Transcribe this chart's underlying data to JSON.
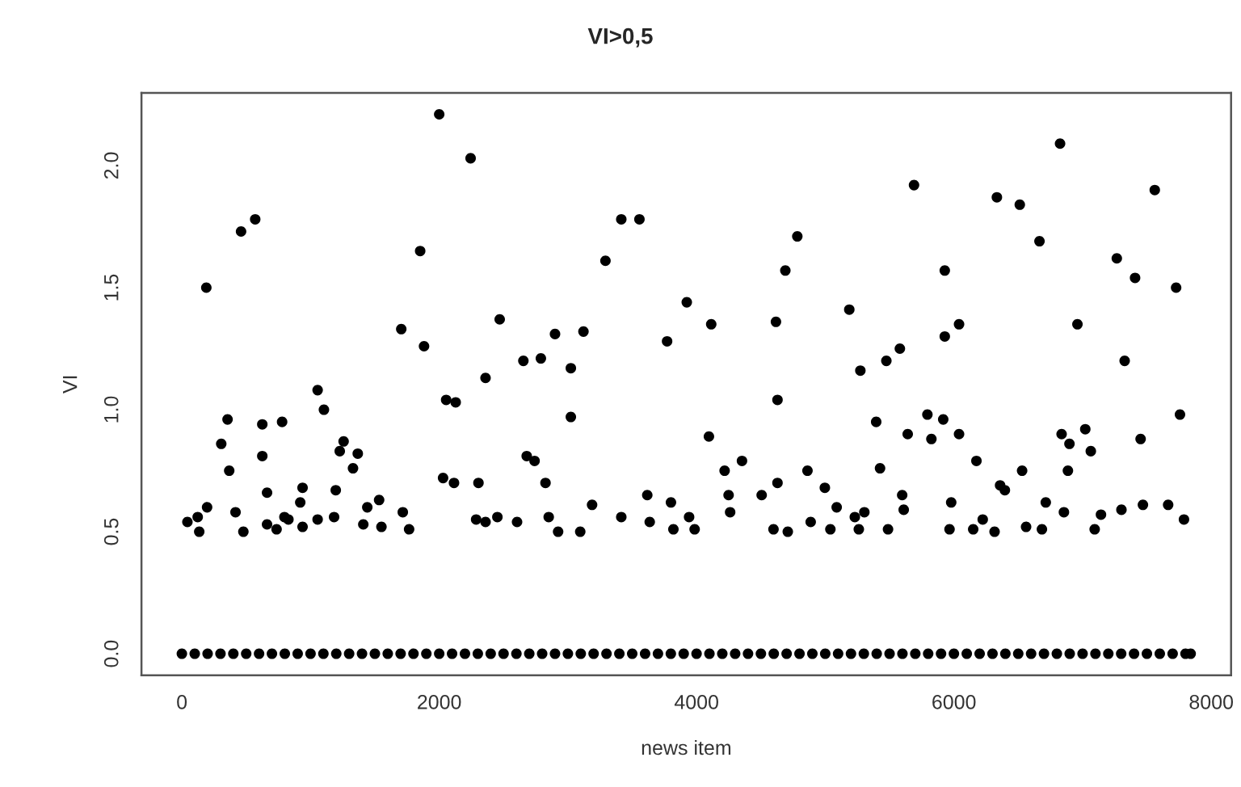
{
  "chart_data": {
    "type": "scatter",
    "title": "VI>0,5",
    "xlabel": "news item",
    "ylabel": "VI",
    "xlim": [
      -314,
      8154
    ],
    "ylim": [
      -0.088,
      2.298
    ],
    "xticks": [
      0,
      2000,
      4000,
      6000,
      8000
    ],
    "yticks": [
      {
        "value": 0,
        "label": "0.0"
      },
      {
        "value": 0.5,
        "label": "0.5"
      },
      {
        "value": 1,
        "label": "1.0"
      },
      {
        "value": 1.5,
        "label": "1.5"
      },
      {
        "value": 2,
        "label": "2.0"
      }
    ],
    "grid": false,
    "marker": "circle",
    "series": [
      {
        "color": "#000000",
        "x": [
          43,
          123,
          135,
          196,
          190,
          306,
          355,
          368,
          417,
          460,
          478,
          570,
          625,
          625,
          662,
          662,
          736,
          779,
          797,
          828,
          920,
          938,
          938,
          1055,
          1104,
          1055,
          1183,
          1196,
          1227,
          1257,
          1330,
          1367,
          1410,
          1441,
          1533,
          1551,
          1705,
          1717,
          1766,
          1852,
          1882,
          2000,
          2030,
          2054,
          2128,
          2115,
          2244,
          2305,
          2287,
          2360,
          2360,
          2452,
          2470,
          2605,
          2654,
          2680,
          2741,
          2790,
          2826,
          2851,
          2900,
          2924,
          3023,
          3023,
          3096,
          3121,
          3188,
          3292,
          3415,
          3556,
          3415,
          3617,
          3636,
          3771,
          3801,
          3820,
          3924,
          3942,
          3985,
          4096,
          4114,
          4218,
          4249,
          4261,
          4353,
          4506,
          4598,
          4617,
          4629,
          4629,
          4690,
          4709,
          4783,
          4862,
          4887,
          4997,
          5040,
          5089,
          5187,
          5230,
          5273,
          5261,
          5304,
          5396,
          5426,
          5475,
          5488,
          5580,
          5598,
          5610,
          5641,
          5690,
          5794,
          5825,
          5929,
          5929,
          5917,
          5966,
          5979,
          6040,
          6040,
          6150,
          6175,
          6224,
          6334,
          6316,
          6359,
          6396,
          6512,
          6530,
          6561,
          6665,
          6684,
          6714,
          6825,
          6837,
          6855,
          6898,
          6886,
          6960,
          7021,
          7064,
          7094,
          7143,
          7266,
          7327,
          7302,
          7408,
          7451,
          7469,
          7561,
          7665,
          7727,
          7757,
          7788
        ],
        "values": [
          0.54,
          0.56,
          0.5,
          0.6,
          1.5,
          0.86,
          0.96,
          0.75,
          0.58,
          1.73,
          0.5,
          1.78,
          0.94,
          0.81,
          0.66,
          0.53,
          0.51,
          0.95,
          0.56,
          0.55,
          0.62,
          0.68,
          0.52,
          1.08,
          1.0,
          0.55,
          0.56,
          0.67,
          0.83,
          0.87,
          0.76,
          0.82,
          0.53,
          0.6,
          0.63,
          0.52,
          1.33,
          0.58,
          0.51,
          1.65,
          1.26,
          2.21,
          0.72,
          1.04,
          1.03,
          0.7,
          2.03,
          0.7,
          0.55,
          1.13,
          0.54,
          0.56,
          1.37,
          0.54,
          1.2,
          0.81,
          0.79,
          1.21,
          0.7,
          0.56,
          1.31,
          0.5,
          1.17,
          0.97,
          0.5,
          1.32,
          0.61,
          1.61,
          1.78,
          1.78,
          0.56,
          0.65,
          0.54,
          1.28,
          0.62,
          0.51,
          1.44,
          0.56,
          0.51,
          0.89,
          1.35,
          0.75,
          0.65,
          0.58,
          0.79,
          0.65,
          0.51,
          1.36,
          1.04,
          0.7,
          1.57,
          0.5,
          1.71,
          0.75,
          0.54,
          0.68,
          0.51,
          0.6,
          1.41,
          0.56,
          1.16,
          0.51,
          0.58,
          0.95,
          0.76,
          1.2,
          0.51,
          1.25,
          0.65,
          0.59,
          0.9,
          1.92,
          0.98,
          0.88,
          1.57,
          1.3,
          0.96,
          0.51,
          0.62,
          1.35,
          0.9,
          0.51,
          0.79,
          0.55,
          1.87,
          0.5,
          0.69,
          0.67,
          1.84,
          0.75,
          0.52,
          1.69,
          0.51,
          0.62,
          2.09,
          0.9,
          0.58,
          0.86,
          0.75,
          1.35,
          0.92,
          0.83,
          0.51,
          0.57,
          1.62,
          1.2,
          0.59,
          1.54,
          0.88,
          0.61,
          1.9,
          0.61,
          1.5,
          0.98,
          0.55
        ]
      },
      {
        "color": "#000000",
        "x": [
          0,
          100,
          200,
          300,
          400,
          500,
          600,
          700,
          800,
          900,
          1000,
          1100,
          1200,
          1300,
          1400,
          1500,
          1600,
          1700,
          1800,
          1900,
          2000,
          2100,
          2200,
          2300,
          2400,
          2500,
          2600,
          2700,
          2800,
          2900,
          3000,
          3100,
          3200,
          3300,
          3400,
          3500,
          3600,
          3700,
          3800,
          3900,
          4000,
          4100,
          4200,
          4300,
          4400,
          4500,
          4600,
          4700,
          4800,
          4900,
          5000,
          5100,
          5200,
          5300,
          5400,
          5500,
          5600,
          5700,
          5800,
          5900,
          6000,
          6100,
          6200,
          6300,
          6400,
          6500,
          6600,
          6700,
          6800,
          6900,
          7000,
          7100,
          7200,
          7300,
          7400,
          7500,
          7600,
          7700,
          7800,
          7840
        ],
        "values": [
          0,
          0,
          0,
          0,
          0,
          0,
          0,
          0,
          0,
          0,
          0,
          0,
          0,
          0,
          0,
          0,
          0,
          0,
          0,
          0,
          0,
          0,
          0,
          0,
          0,
          0,
          0,
          0,
          0,
          0,
          0,
          0,
          0,
          0,
          0,
          0,
          0,
          0,
          0,
          0,
          0,
          0,
          0,
          0,
          0,
          0,
          0,
          0,
          0,
          0,
          0,
          0,
          0,
          0,
          0,
          0,
          0,
          0,
          0,
          0,
          0,
          0,
          0,
          0,
          0,
          0,
          0,
          0,
          0,
          0,
          0,
          0,
          0,
          0,
          0,
          0,
          0,
          0,
          0,
          0
        ]
      }
    ]
  }
}
